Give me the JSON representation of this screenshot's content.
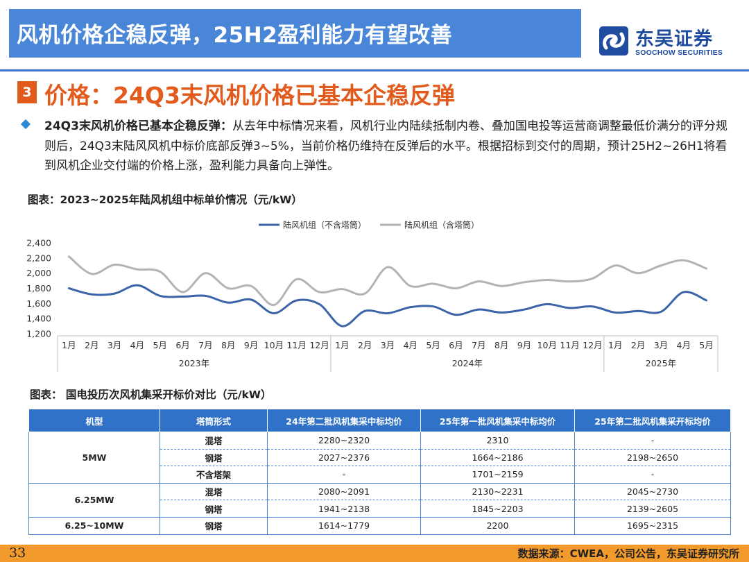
{
  "header": {
    "title": "风机价格企稳反弹，25H2盈利能力有望改善",
    "logo_cn": "东吴证券",
    "logo_en": "SOOCHOW SECURITIES",
    "bar_color": "#4a86d8",
    "logo_color": "#1f4c9e"
  },
  "section": {
    "number": "3",
    "title": "价格：24Q3末风机价格已基本企稳反弹",
    "accent": "#e25b1c"
  },
  "body": {
    "lead": "24Q3末风机价格已基本企稳反弹：",
    "text": "从去年中标情况来看，风机行业内陆续抵制内卷、叠加国电投等运营商调整最低价满分的评分规则后，24Q3末陆风风机中标价底部反弹3~5%，当前价格仍维持在反弹后的水平。根据招标到交付的周期，预计25H2~26H1将看到风机企业交付端的价格上涨，盈利能力具备向上弹性。"
  },
  "figure1_title": "图表：2023~2025年陆风机组中标单价情况（元/kW）",
  "figure2_title": "图表： 国电投历次风机集采开标价对比（元/kW）",
  "chart_data": {
    "type": "line",
    "ylim": [
      1200,
      2400
    ],
    "yticks": [
      "1,200",
      "1,400",
      "1,600",
      "1,800",
      "2,000",
      "2,200",
      "2,400"
    ],
    "categories": [
      "1月",
      "2月",
      "3月",
      "4月",
      "5月",
      "6月",
      "7月",
      "8月",
      "9月",
      "10月",
      "11月",
      "12月",
      "1月",
      "2月",
      "3月",
      "4月",
      "5月",
      "6月",
      "7月",
      "8月",
      "9月",
      "10月",
      "11月",
      "12月",
      "1月",
      "2月",
      "3月",
      "4月",
      "5月"
    ],
    "year_groups": [
      {
        "label": "2023年",
        "count": 12
      },
      {
        "label": "2024年",
        "count": 12
      },
      {
        "label": "2025年",
        "count": 5
      }
    ],
    "series": [
      {
        "name": "陆风机组（不含塔筒）",
        "color": "#3b64a8",
        "values": [
          1800,
          1720,
          1730,
          1840,
          1700,
          1690,
          1700,
          1610,
          1650,
          1470,
          1640,
          1590,
          1300,
          1500,
          1470,
          1550,
          1560,
          1450,
          1520,
          1480,
          1520,
          1590,
          1540,
          1560,
          1480,
          1500,
          1490,
          1750,
          1640
        ]
      },
      {
        "name": "陆风机组（含塔筒）",
        "color": "#b3b3b3",
        "values": [
          2220,
          1990,
          2110,
          2050,
          2020,
          1750,
          2000,
          1800,
          1830,
          1580,
          1920,
          1750,
          1790,
          1730,
          2080,
          1830,
          1860,
          1800,
          1890,
          1830,
          1880,
          1910,
          1890,
          1930,
          2100,
          2000,
          2100,
          2170,
          2060
        ]
      }
    ]
  },
  "table": {
    "headers": [
      "机型",
      "塔筒形式",
      "24年第二批风机集采中标均价",
      "25年第一批风机集采中标均价",
      "25年第二批风机集采开标均价"
    ],
    "header_color": "#2f72c8",
    "groups": [
      {
        "model": "5MW",
        "rows": [
          {
            "tower": "混塔",
            "v1": "2280~2320",
            "v2": "2310",
            "v3": "-"
          },
          {
            "tower": "钢塔",
            "v1": "2027~2376",
            "v2": "1664~2186",
            "v3": "2198~2650"
          },
          {
            "tower": "不含塔架",
            "v1": "-",
            "v2": "1701~2159",
            "v3": "-"
          }
        ]
      },
      {
        "model": "6.25MW",
        "rows": [
          {
            "tower": "混塔",
            "v1": "2080~2091",
            "v2": "2130~2231",
            "v3": "2045~2730"
          },
          {
            "tower": "钢塔",
            "v1": "1941~2138",
            "v2": "1845~2203",
            "v3": "2139~2605"
          }
        ]
      },
      {
        "model": "6.25~10MW",
        "rows": [
          {
            "tower": "钢塔",
            "v1": "1614~1779",
            "v2": "2200",
            "v3": "1695~2315"
          }
        ]
      }
    ]
  },
  "footer": {
    "page": "33",
    "source": "数据来源：CWEA，公司公告，东吴证券研究所",
    "color": "#f39a2c"
  }
}
